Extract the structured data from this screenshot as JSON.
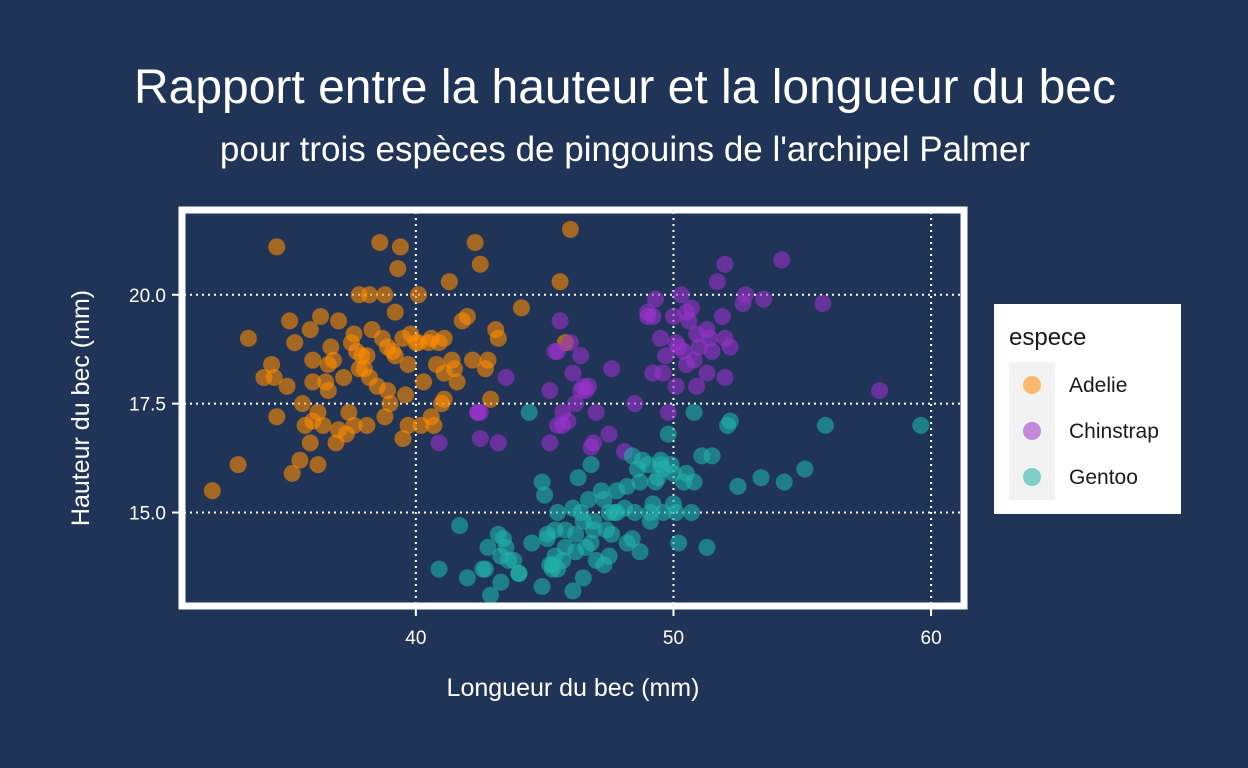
{
  "chart_data": {
    "type": "scatter",
    "title": "Rapport entre la hauteur et la longueur du bec",
    "subtitle": "pour trois espèces de pingouins de l'archipel Palmer",
    "xlabel": "Longueur du bec (mm)",
    "ylabel": "Hauteur du bec (mm)",
    "xlim": [
      31,
      61.2
    ],
    "ylim": [
      12.9,
      21.9
    ],
    "x_ticks": [
      40,
      50,
      60
    ],
    "x_tick_labels": [
      "40",
      "50",
      "60"
    ],
    "y_ticks": [
      15.0,
      17.5,
      20.0
    ],
    "y_tick_labels": [
      "15.0",
      "17.5",
      "20.0"
    ],
    "grid": true,
    "legend": {
      "title": "espece",
      "position": "right"
    },
    "series": [
      {
        "name": "Adelie",
        "color": "#ff8c00",
        "points": [
          [
            32.1,
            15.5
          ],
          [
            33.1,
            16.1
          ],
          [
            33.5,
            19.0
          ],
          [
            34.1,
            18.1
          ],
          [
            34.4,
            18.4
          ],
          [
            34.5,
            18.1
          ],
          [
            34.6,
            21.1
          ],
          [
            34.6,
            17.2
          ],
          [
            35.0,
            17.9
          ],
          [
            35.1,
            19.4
          ],
          [
            35.2,
            15.9
          ],
          [
            35.3,
            18.9
          ],
          [
            35.5,
            16.2
          ],
          [
            35.6,
            17.5
          ],
          [
            35.7,
            17.0
          ],
          [
            35.9,
            19.2
          ],
          [
            36.0,
            17.1
          ],
          [
            36.0,
            18.5
          ],
          [
            36.2,
            16.1
          ],
          [
            36.2,
            17.3
          ],
          [
            36.3,
            19.5
          ],
          [
            36.4,
            17.0
          ],
          [
            36.5,
            18.0
          ],
          [
            36.6,
            17.8
          ],
          [
            36.7,
            18.8
          ],
          [
            36.8,
            18.5
          ],
          [
            36.9,
            16.6
          ],
          [
            37.0,
            16.9
          ],
          [
            37.2,
            18.1
          ],
          [
            37.3,
            16.8
          ],
          [
            37.4,
            17.3
          ],
          [
            37.5,
            18.9
          ],
          [
            37.6,
            19.1
          ],
          [
            37.7,
            18.7
          ],
          [
            37.8,
            18.3
          ],
          [
            37.9,
            18.6
          ],
          [
            38.1,
            17.0
          ],
          [
            38.2,
            18.1
          ],
          [
            38.3,
            19.2
          ],
          [
            38.5,
            17.9
          ],
          [
            38.6,
            21.2
          ],
          [
            38.7,
            19.0
          ],
          [
            38.8,
            17.2
          ],
          [
            38.9,
            18.8
          ],
          [
            39.0,
            17.5
          ],
          [
            39.1,
            18.7
          ],
          [
            39.2,
            19.6
          ],
          [
            39.3,
            20.6
          ],
          [
            39.4,
            21.1
          ],
          [
            39.5,
            16.7
          ],
          [
            39.6,
            17.7
          ],
          [
            39.7,
            18.4
          ],
          [
            39.8,
            19.1
          ],
          [
            40.0,
            18.9
          ],
          [
            40.1,
            18.9
          ],
          [
            40.2,
            17.0
          ],
          [
            40.3,
            18.0
          ],
          [
            40.5,
            18.9
          ],
          [
            40.6,
            19.0
          ],
          [
            40.7,
            17.0
          ],
          [
            40.8,
            18.4
          ],
          [
            40.9,
            18.9
          ],
          [
            41.0,
            17.5
          ],
          [
            41.1,
            19.0
          ],
          [
            41.3,
            20.3
          ],
          [
            41.4,
            18.5
          ],
          [
            41.5,
            18.3
          ],
          [
            41.6,
            18.0
          ],
          [
            41.8,
            19.4
          ],
          [
            42.0,
            19.5
          ],
          [
            42.2,
            18.5
          ],
          [
            42.3,
            21.2
          ],
          [
            42.5,
            20.7
          ],
          [
            42.7,
            18.3
          ],
          [
            42.8,
            18.5
          ],
          [
            42.9,
            17.6
          ],
          [
            43.1,
            19.2
          ],
          [
            43.2,
            19.0
          ],
          [
            44.1,
            19.7
          ],
          [
            45.6,
            20.3
          ],
          [
            45.8,
            18.9
          ],
          [
            46.0,
            21.5
          ],
          [
            37.0,
            19.4
          ],
          [
            37.8,
            20.0
          ],
          [
            38.0,
            18.3
          ],
          [
            38.2,
            20.0
          ],
          [
            39.5,
            19.0
          ],
          [
            40.1,
            20.0
          ],
          [
            36.0,
            18.0
          ],
          [
            37.6,
            17.0
          ],
          [
            38.9,
            17.8
          ],
          [
            40.6,
            17.2
          ],
          [
            41.1,
            17.6
          ],
          [
            39.7,
            17.0
          ],
          [
            38.8,
            20.0
          ],
          [
            36.6,
            18.4
          ],
          [
            38.1,
            18.6
          ],
          [
            35.9,
            16.6
          ],
          [
            39.2,
            18.6
          ],
          [
            41.1,
            18.2
          ]
        ]
      },
      {
        "name": "Chinstrap",
        "color": "#9932cc",
        "points": [
          [
            40.9,
            16.6
          ],
          [
            42.4,
            17.3
          ],
          [
            42.5,
            16.7
          ],
          [
            42.5,
            17.3
          ],
          [
            43.2,
            16.6
          ],
          [
            43.5,
            18.1
          ],
          [
            45.2,
            16.6
          ],
          [
            45.2,
            17.8
          ],
          [
            45.4,
            18.7
          ],
          [
            45.5,
            17.0
          ],
          [
            45.6,
            19.4
          ],
          [
            45.7,
            17.0
          ],
          [
            45.7,
            17.3
          ],
          [
            45.9,
            17.1
          ],
          [
            46.0,
            18.9
          ],
          [
            46.1,
            18.2
          ],
          [
            46.2,
            17.5
          ],
          [
            46.4,
            17.8
          ],
          [
            46.6,
            17.8
          ],
          [
            46.7,
            17.9
          ],
          [
            46.8,
            16.5
          ],
          [
            46.9,
            16.6
          ],
          [
            47.0,
            17.3
          ],
          [
            47.5,
            16.8
          ],
          [
            48.1,
            16.4
          ],
          [
            48.5,
            17.5
          ],
          [
            49.0,
            19.5
          ],
          [
            49.2,
            18.2
          ],
          [
            49.3,
            19.9
          ],
          [
            49.5,
            19.0
          ],
          [
            49.6,
            18.2
          ],
          [
            49.7,
            18.6
          ],
          [
            49.8,
            17.3
          ],
          [
            50.0,
            19.5
          ],
          [
            50.1,
            17.9
          ],
          [
            50.2,
            18.8
          ],
          [
            50.3,
            20.0
          ],
          [
            50.4,
            18.7
          ],
          [
            50.5,
            18.4
          ],
          [
            50.6,
            19.4
          ],
          [
            50.7,
            19.7
          ],
          [
            50.8,
            18.5
          ],
          [
            50.9,
            19.1
          ],
          [
            51.0,
            18.8
          ],
          [
            51.3,
            19.2
          ],
          [
            51.4,
            19.0
          ],
          [
            51.5,
            18.7
          ],
          [
            51.7,
            20.3
          ],
          [
            51.9,
            19.5
          ],
          [
            52.0,
            18.1
          ],
          [
            52.0,
            19.0
          ],
          [
            52.2,
            18.8
          ],
          [
            52.7,
            19.8
          ],
          [
            52.8,
            20.0
          ],
          [
            53.5,
            19.9
          ],
          [
            54.2,
            20.8
          ],
          [
            55.8,
            19.8
          ],
          [
            58.0,
            17.8
          ],
          [
            45.5,
            18.7
          ],
          [
            46.4,
            18.6
          ],
          [
            47.6,
            18.3
          ],
          [
            49.2,
            19.5
          ],
          [
            50.9,
            17.9
          ],
          [
            51.3,
            18.2
          ],
          [
            52.0,
            20.7
          ],
          [
            42.4,
            17.3
          ],
          [
            46.5,
            17.9
          ],
          [
            50.5,
            19.6
          ],
          [
            49.0,
            19.6
          ],
          [
            50.1,
            18.9
          ]
        ]
      },
      {
        "name": "Gentoo",
        "color": "#20b2aa",
        "points": [
          [
            40.9,
            13.7
          ],
          [
            41.7,
            14.7
          ],
          [
            42.0,
            13.5
          ],
          [
            42.6,
            13.7
          ],
          [
            42.7,
            13.7
          ],
          [
            42.8,
            14.2
          ],
          [
            42.9,
            13.1
          ],
          [
            43.2,
            14.5
          ],
          [
            43.3,
            13.4
          ],
          [
            43.4,
            14.4
          ],
          [
            43.5,
            14.2
          ],
          [
            43.6,
            13.9
          ],
          [
            43.8,
            13.9
          ],
          [
            44.0,
            13.6
          ],
          [
            44.4,
            17.3
          ],
          [
            44.5,
            14.3
          ],
          [
            44.9,
            13.3
          ],
          [
            45.0,
            15.4
          ],
          [
            45.1,
            14.5
          ],
          [
            45.2,
            13.8
          ],
          [
            45.3,
            13.7
          ],
          [
            45.4,
            14.6
          ],
          [
            45.5,
            13.7
          ],
          [
            45.7,
            13.9
          ],
          [
            45.8,
            14.6
          ],
          [
            46.1,
            13.2
          ],
          [
            46.2,
            14.5
          ],
          [
            46.3,
            15.8
          ],
          [
            46.4,
            15.0
          ],
          [
            46.5,
            13.5
          ],
          [
            46.6,
            14.2
          ],
          [
            46.7,
            15.3
          ],
          [
            46.8,
            14.3
          ],
          [
            46.9,
            14.6
          ],
          [
            47.0,
            13.9
          ],
          [
            47.2,
            15.5
          ],
          [
            47.3,
            15.3
          ],
          [
            47.4,
            14.6
          ],
          [
            47.5,
            14.0
          ],
          [
            47.6,
            14.5
          ],
          [
            47.7,
            15.0
          ],
          [
            47.8,
            15.0
          ],
          [
            48.1,
            15.1
          ],
          [
            48.2,
            14.3
          ],
          [
            48.4,
            14.4
          ],
          [
            48.5,
            15.0
          ],
          [
            48.6,
            16.0
          ],
          [
            48.7,
            15.7
          ],
          [
            48.8,
            16.2
          ],
          [
            49.0,
            16.1
          ],
          [
            49.1,
            14.8
          ],
          [
            49.2,
            15.2
          ],
          [
            49.3,
            15.7
          ],
          [
            49.4,
            15.8
          ],
          [
            49.5,
            16.1
          ],
          [
            49.6,
            15.0
          ],
          [
            49.8,
            16.8
          ],
          [
            49.9,
            16.1
          ],
          [
            50.0,
            15.2
          ],
          [
            50.1,
            15.0
          ],
          [
            50.2,
            14.3
          ],
          [
            50.4,
            15.7
          ],
          [
            50.5,
            15.9
          ],
          [
            50.7,
            15.0
          ],
          [
            50.8,
            15.7
          ],
          [
            51.1,
            16.3
          ],
          [
            51.3,
            14.2
          ],
          [
            51.5,
            16.3
          ],
          [
            52.1,
            17.0
          ],
          [
            52.2,
            17.1
          ],
          [
            52.5,
            15.6
          ],
          [
            53.4,
            15.8
          ],
          [
            54.3,
            15.7
          ],
          [
            55.1,
            16.0
          ],
          [
            55.9,
            17.0
          ],
          [
            59.6,
            17.0
          ],
          [
            44.9,
            15.7
          ],
          [
            45.5,
            15.0
          ],
          [
            46.9,
            14.8
          ],
          [
            47.3,
            13.8
          ],
          [
            48.7,
            14.1
          ],
          [
            49.1,
            15.0
          ],
          [
            50.0,
            15.9
          ],
          [
            45.8,
            14.2
          ],
          [
            46.2,
            14.1
          ],
          [
            44.0,
            13.6
          ],
          [
            45.4,
            14.0
          ],
          [
            46.5,
            14.8
          ],
          [
            47.8,
            15.5
          ],
          [
            48.4,
            16.3
          ],
          [
            49.5,
            16.2
          ],
          [
            46.1,
            15.1
          ],
          [
            45.1,
            14.4
          ],
          [
            43.3,
            14.0
          ],
          [
            50.8,
            17.3
          ],
          [
            46.8,
            16.1
          ],
          [
            49.6,
            16.0
          ],
          [
            47.5,
            15.0
          ],
          [
            48.2,
            15.6
          ],
          [
            45.3,
            13.8
          ]
        ]
      }
    ]
  }
}
